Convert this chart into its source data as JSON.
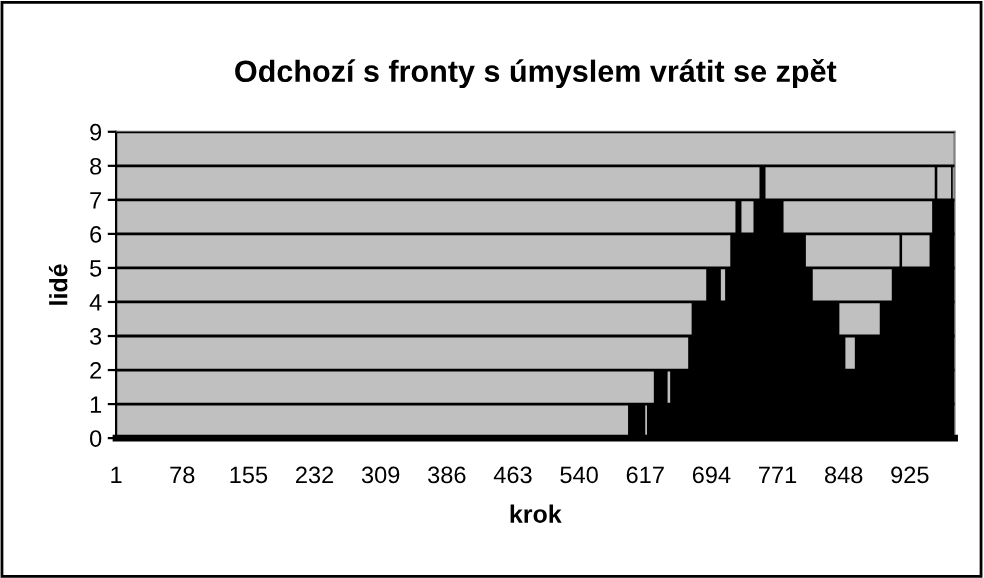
{
  "chart_data": {
    "type": "area",
    "title": "Odchozí s fronty s úmyslem vrátit se zpět",
    "xlabel": "krok",
    "ylabel": "lidé",
    "x": [
      1,
      597,
      597,
      617,
      617,
      619,
      619,
      627,
      627,
      643,
      643,
      646,
      646,
      667,
      667,
      671,
      671,
      688,
      688,
      705,
      705,
      710,
      710,
      716,
      716,
      722,
      722,
      729,
      729,
      743,
      743,
      750,
      750,
      757,
      757,
      778,
      778,
      804,
      804,
      812,
      812,
      843,
      843,
      850,
      850,
      861,
      861,
      890,
      890,
      904,
      904,
      913,
      913,
      916,
      916,
      948,
      948,
      951,
      951,
      954,
      954,
      957,
      957,
      973,
      973,
      975,
      975,
      977
    ],
    "values": [
      0,
      0,
      1,
      1,
      0,
      0,
      1,
      1,
      2,
      2,
      1,
      1,
      2,
      2,
      3,
      3,
      4,
      4,
      5,
      5,
      4,
      4,
      5,
      5,
      6,
      6,
      7,
      7,
      6,
      6,
      7,
      7,
      8,
      8,
      7,
      7,
      6,
      6,
      5,
      5,
      4,
      4,
      3,
      3,
      2,
      2,
      3,
      3,
      4,
      4,
      5,
      5,
      6,
      6,
      5,
      5,
      6,
      6,
      7,
      7,
      8,
      8,
      7,
      7,
      8,
      8,
      7,
      7
    ],
    "color": "#000000",
    "xlim": [
      1,
      977
    ],
    "xticks": [
      1,
      78,
      155,
      232,
      309,
      386,
      463,
      540,
      617,
      694,
      771,
      848,
      925
    ],
    "ylim": [
      0,
      9
    ],
    "yticks": [
      0,
      1,
      2,
      3,
      4,
      5,
      6,
      7,
      8,
      9
    ],
    "grid": "y"
  }
}
